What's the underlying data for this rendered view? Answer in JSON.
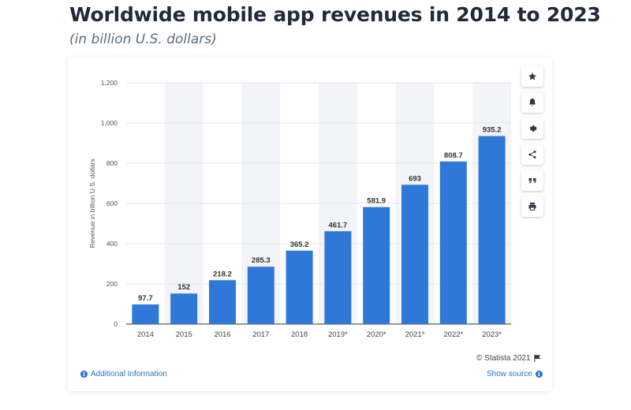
{
  "header": {
    "title": "Worldwide mobile app revenues in 2014 to 2023",
    "subtitle": "(in billion U.S. dollars)"
  },
  "toolbar": {
    "items": [
      {
        "icon": "star-icon"
      },
      {
        "icon": "bell-icon"
      },
      {
        "icon": "gear-icon"
      },
      {
        "icon": "share-icon"
      },
      {
        "icon": "quote-icon"
      },
      {
        "icon": "print-icon"
      }
    ]
  },
  "footer": {
    "copyright": "© Statista 2021",
    "additional_info": "Additional Information",
    "show_source": "Show source"
  },
  "colors": {
    "bar": "#2f78d8",
    "band": "#f3f4f7",
    "link": "#2a72c9"
  },
  "chart_data": {
    "type": "bar",
    "categories": [
      "2014",
      "2015",
      "2016",
      "2017",
      "2018",
      "2019*",
      "2020*",
      "2021*",
      "2022*",
      "2023*"
    ],
    "values": [
      97.7,
      152,
      218.2,
      285.3,
      365.2,
      461.7,
      581.9,
      693,
      808.7,
      935.2
    ],
    "value_labels": [
      "97.7",
      "152",
      "218.2",
      "285.3",
      "365.2",
      "461.7",
      "581.9",
      "693",
      "808.7",
      "935.2"
    ],
    "title": "Worldwide mobile app revenues in 2014 to 2023",
    "subtitle": "(in billion U.S. dollars)",
    "xlabel": "",
    "ylabel": "Revenue in billion U.S. dollars",
    "ylim": [
      0,
      1200
    ],
    "yticks": [
      0,
      200,
      400,
      600,
      800,
      1000,
      1200
    ],
    "ytick_labels": [
      "0",
      "200",
      "400",
      "600",
      "800",
      "1,000",
      "1,200"
    ],
    "grid": true,
    "alternating_bands": true
  }
}
